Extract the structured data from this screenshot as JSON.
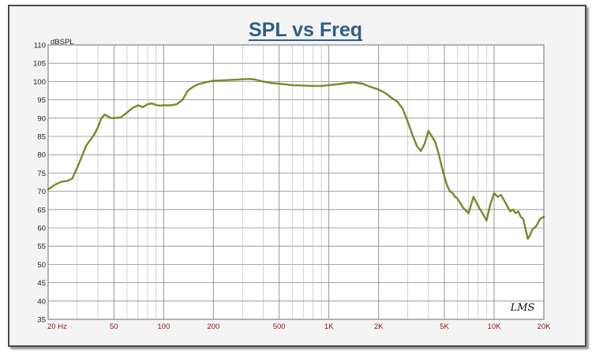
{
  "chart_data": {
    "type": "line",
    "title": "SPL vs Freq",
    "ylabel": "dBSPL",
    "xscale": "log",
    "xlim": [
      20,
      20000
    ],
    "ylim": [
      35,
      110
    ],
    "grid": true,
    "x_tick_labels": [
      {
        "value": 20,
        "label": "20  Hz"
      },
      {
        "value": 50,
        "label": "50"
      },
      {
        "value": 100,
        "label": "100"
      },
      {
        "value": 200,
        "label": "200"
      },
      {
        "value": 500,
        "label": "500"
      },
      {
        "value": 1000,
        "label": "1K"
      },
      {
        "value": 2000,
        "label": "2K"
      },
      {
        "value": 5000,
        "label": "5K"
      },
      {
        "value": 10000,
        "label": "10K"
      },
      {
        "value": 20000,
        "label": "20K"
      }
    ],
    "y_tick_labels": [
      "35",
      "40",
      "45",
      "50",
      "55",
      "60",
      "65",
      "70",
      "75",
      "80",
      "85",
      "90",
      "95",
      "100",
      "105",
      "110"
    ],
    "series": [
      {
        "color": "#7f8a12",
        "x": [
          20,
          22,
          24,
          26,
          28,
          30,
          32,
          34,
          36,
          38,
          40,
          42,
          44,
          46,
          48,
          50,
          55,
          60,
          65,
          70,
          75,
          80,
          85,
          90,
          95,
          100,
          110,
          120,
          130,
          140,
          150,
          160,
          170,
          180,
          200,
          220,
          250,
          280,
          300,
          330,
          360,
          400,
          450,
          500,
          550,
          600,
          700,
          800,
          900,
          1000,
          1100,
          1200,
          1400,
          1500,
          1600,
          1800,
          2000,
          2200,
          2400,
          2600,
          2800,
          3000,
          3200,
          3400,
          3600,
          3800,
          4000,
          4200,
          4400,
          4600,
          4800,
          5000,
          5200,
          5400,
          5600,
          5800,
          6000,
          6500,
          7000,
          7500,
          8000,
          8500,
          9000,
          9500,
          10000,
          10500,
          11000,
          11500,
          12000,
          12500,
          13000,
          13500,
          14000,
          14500,
          15000,
          16000,
          16500,
          17000,
          18000,
          19000,
          20000
        ],
        "y": [
          70.5,
          71.8,
          72.6,
          72.8,
          73.5,
          76.5,
          79.5,
          82.5,
          84.0,
          85.5,
          87.5,
          90.0,
          91.0,
          90.5,
          90.0,
          90.0,
          90.2,
          91.5,
          92.8,
          93.5,
          93.0,
          93.8,
          94.0,
          93.6,
          93.4,
          93.5,
          93.5,
          93.8,
          95.0,
          97.5,
          98.5,
          99.2,
          99.5,
          99.8,
          100.2,
          100.3,
          100.4,
          100.5,
          100.6,
          100.7,
          100.5,
          100.0,
          99.6,
          99.4,
          99.2,
          99.0,
          98.9,
          98.8,
          98.8,
          99.0,
          99.2,
          99.4,
          99.8,
          99.6,
          99.4,
          98.5,
          97.8,
          96.8,
          95.5,
          94.5,
          92.5,
          89.0,
          85.5,
          82.5,
          81.0,
          83.0,
          86.5,
          85.0,
          83.5,
          80.5,
          77.0,
          74.0,
          71.5,
          70.0,
          69.5,
          68.5,
          68.0,
          65.5,
          64.0,
          68.5,
          66.0,
          64.0,
          62.0,
          66.5,
          69.5,
          68.5,
          69.0,
          67.5,
          66.0,
          64.5,
          65.0,
          64.0,
          64.5,
          63.0,
          62.5,
          57.0,
          58.0,
          59.5,
          60.5,
          62.5,
          63.0
        ]
      }
    ],
    "logo_text": "LMS"
  }
}
